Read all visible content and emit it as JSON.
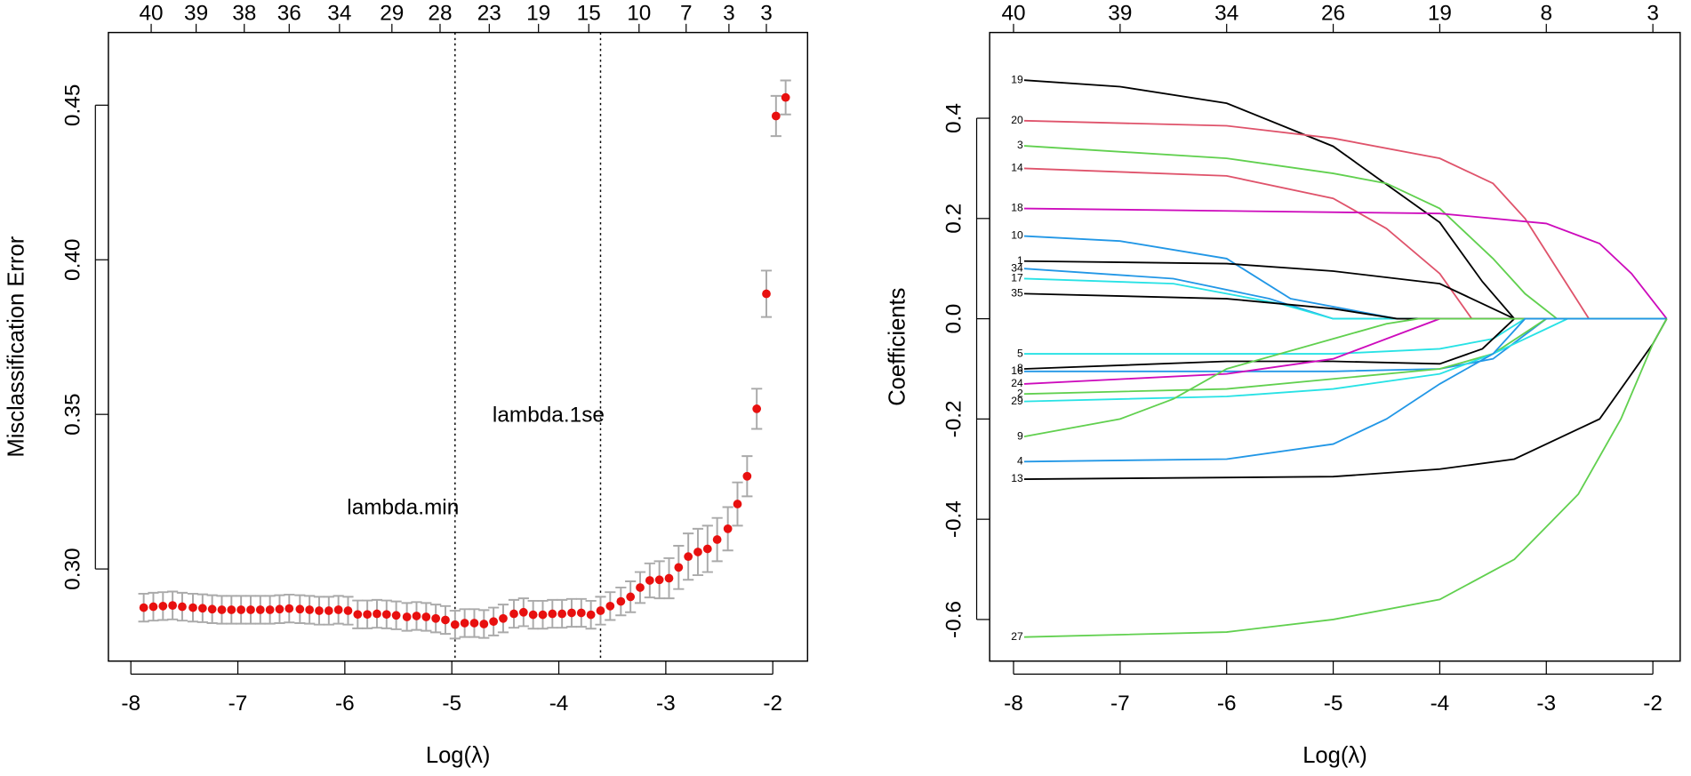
{
  "chart_data": [
    {
      "type": "scatter",
      "xlabel": "Log(λ)",
      "ylabel": "Misclassification Error",
      "x": [
        -7.88,
        -7.79,
        -7.7,
        -7.61,
        -7.52,
        -7.42,
        -7.33,
        -7.24,
        -7.15,
        -7.06,
        -6.97,
        -6.88,
        -6.79,
        -6.7,
        -6.61,
        -6.52,
        -6.42,
        -6.33,
        -6.24,
        -6.15,
        -6.06,
        -5.97,
        -5.88,
        -5.79,
        -5.7,
        -5.61,
        -5.52,
        -5.42,
        -5.33,
        -5.24,
        -5.15,
        -5.06,
        -4.97,
        -4.88,
        -4.79,
        -4.7,
        -4.61,
        -4.52,
        -4.42,
        -4.33,
        -4.24,
        -4.15,
        -4.06,
        -3.97,
        -3.88,
        -3.79,
        -3.7,
        -3.61,
        -3.52,
        -3.42,
        -3.33,
        -3.24,
        -3.15,
        -3.06,
        -2.97,
        -2.88,
        -2.79,
        -2.7,
        -2.61,
        -2.52,
        -2.42,
        -2.33,
        -2.24,
        -2.15,
        -2.06,
        -1.97,
        -1.88
      ],
      "values": [
        0.2875,
        0.2878,
        0.288,
        0.2882,
        0.2878,
        0.2875,
        0.2873,
        0.287,
        0.2868,
        0.2868,
        0.2868,
        0.2868,
        0.2868,
        0.2868,
        0.287,
        0.2872,
        0.287,
        0.2868,
        0.2865,
        0.2865,
        0.2868,
        0.2865,
        0.2853,
        0.2853,
        0.2855,
        0.2853,
        0.285,
        0.2845,
        0.2848,
        0.2845,
        0.284,
        0.2835,
        0.282,
        0.2825,
        0.2825,
        0.2822,
        0.283,
        0.284,
        0.2855,
        0.286,
        0.2852,
        0.2852,
        0.2855,
        0.2855,
        0.2858,
        0.2858,
        0.2852,
        0.2865,
        0.288,
        0.2895,
        0.291,
        0.294,
        0.2963,
        0.2965,
        0.297,
        0.3005,
        0.304,
        0.3055,
        0.3065,
        0.3095,
        0.313,
        0.321,
        0.33,
        0.3518,
        0.389,
        0.4465,
        0.4525
      ],
      "errors": [
        0.0045,
        0.0045,
        0.0045,
        0.0045,
        0.0045,
        0.0045,
        0.0045,
        0.0045,
        0.0045,
        0.0045,
        0.0045,
        0.0045,
        0.0045,
        0.0045,
        0.0045,
        0.0045,
        0.0045,
        0.0045,
        0.0045,
        0.0045,
        0.0045,
        0.0045,
        0.0045,
        0.0045,
        0.0045,
        0.0045,
        0.0045,
        0.0045,
        0.0045,
        0.0045,
        0.0045,
        0.0045,
        0.0045,
        0.0045,
        0.0045,
        0.0045,
        0.0045,
        0.0045,
        0.0045,
        0.0045,
        0.0045,
        0.0045,
        0.0045,
        0.0045,
        0.0045,
        0.0045,
        0.0045,
        0.0045,
        0.0045,
        0.0045,
        0.005,
        0.005,
        0.0055,
        0.006,
        0.0065,
        0.007,
        0.0075,
        0.0075,
        0.0075,
        0.007,
        0.007,
        0.007,
        0.0065,
        0.0065,
        0.0075,
        0.0065,
        0.0055
      ],
      "color": "#e8100f",
      "error_color": "#aaaaaa",
      "vlines": [
        {
          "x": -4.97,
          "label": "lambda.min",
          "label_y": 0.3195
        },
        {
          "x": -3.61,
          "label": "lambda.1se",
          "label_y": 0.3495
        }
      ],
      "xlim": [
        -8.21,
        -1.675
      ],
      "ylim": [
        0.2702,
        0.4735
      ],
      "xticks": [
        -8,
        -7,
        -6,
        -5,
        -4,
        -3,
        -2
      ],
      "yticks": [
        {
          "value": 0.3,
          "label": "0.30"
        },
        {
          "value": 0.35,
          "label": "0.35"
        },
        {
          "value": 0.4,
          "label": "0.40"
        },
        {
          "value": 0.45,
          "label": "0.45"
        }
      ],
      "top_ticks": [
        {
          "value": -7.81,
          "label": "40"
        },
        {
          "value": -7.39,
          "label": "39"
        },
        {
          "value": -6.94,
          "label": "38"
        },
        {
          "value": -6.52,
          "label": "36"
        },
        {
          "value": -6.05,
          "label": "34"
        },
        {
          "value": -5.56,
          "label": "29"
        },
        {
          "value": -5.11,
          "label": "28"
        },
        {
          "value": -4.65,
          "label": "23"
        },
        {
          "value": -4.19,
          "label": "19"
        },
        {
          "value": -3.72,
          "label": "15"
        },
        {
          "value": -3.25,
          "label": "10"
        },
        {
          "value": -2.81,
          "label": "7"
        },
        {
          "value": -2.41,
          "label": "3"
        },
        {
          "value": -2.06,
          "label": "3"
        }
      ]
    },
    {
      "type": "line",
      "xlabel": "Log(λ)",
      "ylabel": "Coefficients",
      "series": [
        {
          "name": "19",
          "color": "#000000",
          "x": [
            -7.9,
            -7,
            -6,
            -5,
            -4.5,
            -4,
            -3.6,
            -3.3,
            -1.87
          ],
          "values": [
            0.476,
            0.463,
            0.43,
            0.344,
            0.268,
            0.192,
            0.074,
            0,
            0
          ]
        },
        {
          "name": "20",
          "color": "#DF536B",
          "x": [
            -7.9,
            -6,
            -5,
            -4,
            -3.5,
            -3.2,
            -2.9,
            -2.6,
            -1.87
          ],
          "values": [
            0.395,
            0.385,
            0.36,
            0.32,
            0.27,
            0.2,
            0.1,
            0,
            0
          ]
        },
        {
          "name": "3",
          "color": "#61D04F",
          "x": [
            -7.9,
            -6,
            -5,
            -4.5,
            -4,
            -3.5,
            -3.2,
            -2.9,
            -1.87
          ],
          "values": [
            0.345,
            0.32,
            0.29,
            0.27,
            0.22,
            0.12,
            0.05,
            0,
            0
          ]
        },
        {
          "name": "14",
          "color": "#DF536B",
          "x": [
            -7.9,
            -6,
            -5,
            -4.5,
            -4,
            -3.7,
            -1.87
          ],
          "values": [
            0.3,
            0.285,
            0.24,
            0.18,
            0.09,
            0,
            0
          ]
        },
        {
          "name": "18",
          "color": "#CD0BBC",
          "x": [
            -7.9,
            -4,
            -3,
            -2.5,
            -2.2,
            -1.87
          ],
          "values": [
            0.22,
            0.21,
            0.19,
            0.15,
            0.09,
            0
          ]
        },
        {
          "name": "10",
          "color": "#2297E6",
          "x": [
            -7.9,
            -7,
            -6,
            -5.4,
            -4.4,
            -1.87
          ],
          "values": [
            0.165,
            0.155,
            0.12,
            0.04,
            0,
            0
          ]
        },
        {
          "name": "1",
          "color": "#000000",
          "x": [
            -7.9,
            -6,
            -5,
            -4,
            -3.5,
            -3.3,
            -1.87
          ],
          "values": [
            0.115,
            0.11,
            0.095,
            0.07,
            0.02,
            0,
            0
          ]
        },
        {
          "name": "34",
          "color": "#2297E6",
          "x": [
            -7.9,
            -6.5,
            -5.6,
            -5,
            -1.87
          ],
          "values": [
            0.1,
            0.08,
            0.04,
            0,
            0
          ]
        },
        {
          "name": "17",
          "color": "#28E2E5",
          "x": [
            -7.9,
            -6.5,
            -5.5,
            -5,
            -1.87
          ],
          "values": [
            0.08,
            0.07,
            0.03,
            0,
            0
          ]
        },
        {
          "name": "35",
          "color": "#000000",
          "x": [
            -7.9,
            -6,
            -5,
            -4.4,
            -1.87
          ],
          "values": [
            0.05,
            0.04,
            0.02,
            0,
            0
          ]
        },
        {
          "name": "5",
          "color": "#28E2E5",
          "x": [
            -7.9,
            -5,
            -4,
            -3.5,
            -3.2,
            -1.87
          ],
          "values": [
            -0.07,
            -0.07,
            -0.06,
            -0.04,
            0,
            0
          ]
        },
        {
          "name": "8",
          "color": "#000000",
          "x": [
            -7.9,
            -6,
            -5,
            -4,
            -3.6,
            -3.3,
            -1.87
          ],
          "values": [
            -0.1,
            -0.085,
            -0.085,
            -0.09,
            -0.06,
            0,
            0
          ]
        },
        {
          "name": "16",
          "color": "#2297E6",
          "x": [
            -7.9,
            -5,
            -4,
            -3.5,
            -3,
            -1.87
          ],
          "values": [
            -0.105,
            -0.105,
            -0.1,
            -0.08,
            0,
            0
          ]
        },
        {
          "name": "24",
          "color": "#CD0BBC",
          "x": [
            -7.9,
            -6,
            -5,
            -4.5,
            -4,
            -1.87
          ],
          "values": [
            -0.13,
            -0.11,
            -0.08,
            -0.04,
            0,
            0
          ]
        },
        {
          "name": "2",
          "color": "#61D04F",
          "x": [
            -7.9,
            -6,
            -5,
            -4,
            -3.5,
            -3,
            -1.87
          ],
          "values": [
            -0.15,
            -0.14,
            -0.12,
            -0.1,
            -0.07,
            0,
            0
          ]
        },
        {
          "name": "29",
          "color": "#28E2E5",
          "x": [
            -7.9,
            -6,
            -5,
            -4,
            -3.5,
            -3,
            -2.8,
            -1.87
          ],
          "values": [
            -0.165,
            -0.155,
            -0.14,
            -0.11,
            -0.07,
            -0.02,
            0,
            0
          ]
        },
        {
          "name": "9",
          "color": "#61D04F",
          "x": [
            -7.9,
            -7,
            -6.5,
            -6,
            -5,
            -4.5,
            -4.2,
            -1.87
          ],
          "values": [
            -0.235,
            -0.2,
            -0.16,
            -0.1,
            -0.04,
            -0.01,
            0,
            0
          ]
        },
        {
          "name": "4",
          "color": "#2297E6",
          "x": [
            -7.9,
            -6,
            -5,
            -4.5,
            -4,
            -3.5,
            -3.2,
            -1.87
          ],
          "values": [
            -0.285,
            -0.28,
            -0.25,
            -0.2,
            -0.13,
            -0.07,
            0,
            0
          ]
        },
        {
          "name": "13",
          "color": "#000000",
          "x": [
            -7.9,
            -5,
            -4,
            -3.3,
            -2.5,
            -2,
            -1.87
          ],
          "values": [
            -0.32,
            -0.315,
            -0.3,
            -0.28,
            -0.2,
            -0.05,
            0
          ]
        },
        {
          "name": "27",
          "color": "#61D04F",
          "x": [
            -7.9,
            -6,
            -5,
            -4,
            -3.3,
            -2.7,
            -2.3,
            -2,
            -1.87
          ],
          "values": [
            -0.635,
            -0.625,
            -0.6,
            -0.56,
            -0.48,
            -0.35,
            -0.2,
            -0.05,
            0
          ]
        }
      ],
      "xlim": [
        -8.224,
        -1.744
      ],
      "ylim": [
        -0.683,
        0.571
      ],
      "xticks": [
        -8,
        -7,
        -6,
        -5,
        -4,
        -3,
        -2
      ],
      "yticks": [
        -0.6,
        -0.4,
        -0.2,
        {
          "value": 0,
          "label": "0.0"
        },
        0.2,
        0.4
      ],
      "top_ticks": [
        {
          "value": -8,
          "label": "40"
        },
        {
          "value": -7,
          "label": "39"
        },
        {
          "value": -6,
          "label": "34"
        },
        {
          "value": -5,
          "label": "26"
        },
        {
          "value": -4,
          "label": "19"
        },
        {
          "value": -3,
          "label": "8"
        },
        {
          "value": -2,
          "label": "3"
        }
      ]
    }
  ]
}
